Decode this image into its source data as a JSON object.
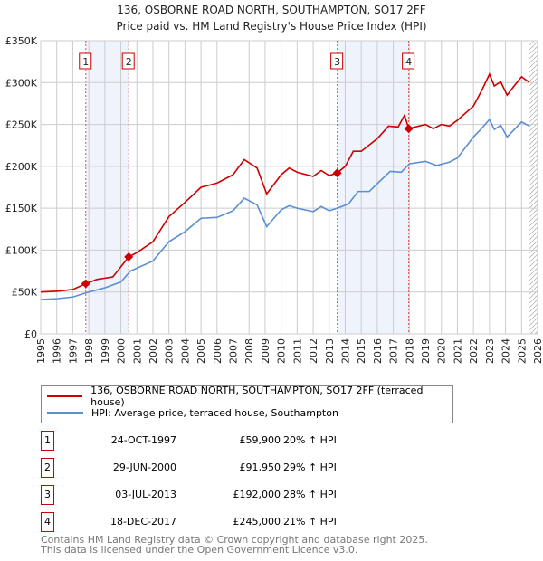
{
  "chart_data": {
    "type": "line",
    "title": "136, OSBORNE ROAD NORTH, SOUTHAMPTON, SO17 2FF",
    "subtitle": "Price paid vs. HM Land Registry's House Price Index (HPI)",
    "xlim": [
      1995,
      2026
    ],
    "ylim": [
      0,
      350000
    ],
    "yticks": [
      {
        "v": 0,
        "label": "£0"
      },
      {
        "v": 50000,
        "label": "£50K"
      },
      {
        "v": 100000,
        "label": "£100K"
      },
      {
        "v": 150000,
        "label": "£150K"
      },
      {
        "v": 200000,
        "label": "£200K"
      },
      {
        "v": 250000,
        "label": "£250K"
      },
      {
        "v": 300000,
        "label": "£300K"
      },
      {
        "v": 350000,
        "label": "£350K"
      }
    ],
    "xticks": [
      "1995",
      "1996",
      "1997",
      "1998",
      "1999",
      "2000",
      "2001",
      "2002",
      "2003",
      "2004",
      "2005",
      "2006",
      "2007",
      "2008",
      "2009",
      "2010",
      "2011",
      "2012",
      "2013",
      "2014",
      "2015",
      "2016",
      "2017",
      "2018",
      "2019",
      "2020",
      "2021",
      "2022",
      "2023",
      "2024",
      "2025",
      "2026"
    ],
    "grid": true,
    "shaded_ranges": [
      [
        1997.81,
        2000.49
      ],
      [
        2013.5,
        2017.96
      ]
    ],
    "forecast_hatch_from": 2025.5,
    "series": [
      {
        "name": "136, OSBORNE ROAD NORTH, SOUTHAMPTON, SO17 2FF (terraced house)",
        "color": "#cc0000",
        "x": [
          1995,
          1996,
          1997,
          1997.81,
          1998.5,
          1999.5,
          2000.49,
          2001,
          2002,
          2003,
          2004,
          2005,
          2006,
          2007,
          2007.7,
          2008.5,
          2009.1,
          2010,
          2010.5,
          2011,
          2012,
          2012.5,
          2013,
          2013.5,
          2014,
          2014.5,
          2015,
          2016,
          2016.7,
          2017.3,
          2017.7,
          2017.96,
          2019,
          2019.5,
          2020,
          2020.5,
          2021,
          2022,
          2022.5,
          2023,
          2023.3,
          2023.7,
          2024.1,
          2024.5,
          2025,
          2025.5
        ],
        "y": [
          50000,
          51000,
          53000,
          59900,
          65000,
          68000,
          91950,
          97000,
          110000,
          140000,
          157000,
          175000,
          180000,
          190000,
          208000,
          198000,
          167000,
          190000,
          198000,
          193000,
          188000,
          195000,
          189000,
          192000,
          200000,
          218000,
          218000,
          233000,
          248000,
          247000,
          261000,
          245000,
          250000,
          245000,
          250000,
          248000,
          255000,
          272000,
          290000,
          310000,
          296000,
          301000,
          285000,
          295000,
          307000,
          300000
        ]
      },
      {
        "name": "HPI: Average price, terraced house, Southampton",
        "color": "#5b8fd1",
        "x": [
          1995,
          1996,
          1997,
          1998,
          1999,
          2000,
          2000.6,
          2002,
          2003,
          2004,
          2005,
          2006,
          2007,
          2007.7,
          2008.5,
          2009.1,
          2010,
          2010.5,
          2011,
          2012,
          2012.5,
          2013,
          2013.5,
          2014.2,
          2014.8,
          2015.5,
          2016.2,
          2016.8,
          2017.5,
          2018,
          2019,
          2019.7,
          2020.5,
          2021,
          2022,
          2022.5,
          2023,
          2023.3,
          2023.7,
          2024.1,
          2024.5,
          2025,
          2025.5
        ],
        "y": [
          41000,
          42000,
          44000,
          50000,
          55000,
          62000,
          75000,
          87000,
          110000,
          122000,
          138000,
          139000,
          147000,
          162000,
          154000,
          128000,
          148000,
          153000,
          150000,
          146000,
          152000,
          147000,
          150000,
          155000,
          170000,
          170000,
          183000,
          194000,
          193000,
          203000,
          206000,
          201000,
          205000,
          210000,
          235000,
          245000,
          256000,
          244000,
          249000,
          235000,
          243000,
          253000,
          248000
        ]
      }
    ],
    "sales": [
      {
        "n": "1",
        "x": 1997.81,
        "y": 59900,
        "date": "24-OCT-1997",
        "price": "£59,900",
        "hpi": "20% ↑ HPI"
      },
      {
        "n": "2",
        "x": 2000.49,
        "y": 91950,
        "date": "29-JUN-2000",
        "price": "£91,950",
        "hpi": "29% ↑ HPI"
      },
      {
        "n": "3",
        "x": 2013.5,
        "y": 192000,
        "date": "03-JUL-2013",
        "price": "£192,000",
        "hpi": "28% ↑ HPI"
      },
      {
        "n": "4",
        "x": 2017.96,
        "y": 245000,
        "date": "18-DEC-2017",
        "price": "£245,000",
        "hpi": "21% ↑ HPI"
      }
    ]
  },
  "footer": {
    "line1": "Contains HM Land Registry data © Crown copyright and database right 2025.",
    "line2": "This data is licensed under the Open Government Licence v3.0."
  }
}
